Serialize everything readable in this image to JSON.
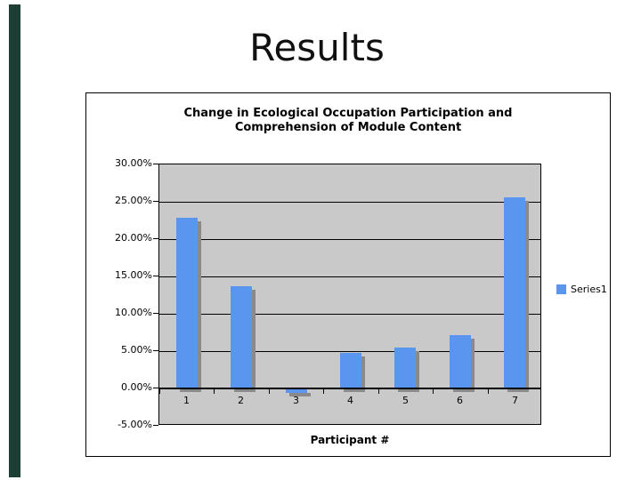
{
  "slide": {
    "title": "Results"
  },
  "chart": {
    "title_line1": "Change in Ecological Occupation Participation and",
    "title_line2": "Comprehension of Module Content",
    "x_axis_title": "Participant #",
    "legend_label": "Series1",
    "colors": {
      "bar_fill": "#5A96F0",
      "bar_shadow": "#8A8A8A",
      "plot_background": "#C9C9C9",
      "accent_bar": "#1D3E35"
    }
  },
  "chart_data": {
    "type": "bar",
    "title": "Change in Ecological Occupation Participation and Comprehension of Module Content",
    "categories": [
      "1",
      "2",
      "3",
      "4",
      "5",
      "6",
      "7"
    ],
    "series": [
      {
        "name": "Series1",
        "values": [
          22.9,
          13.7,
          -0.5,
          4.8,
          5.5,
          7.2,
          25.6
        ]
      }
    ],
    "xlabel": "Participant #",
    "ylabel": "",
    "ylim": [
      -5,
      30
    ],
    "ytick_labels": [
      "30.00%",
      "25.00%",
      "20.00%",
      "15.00%",
      "10.00%",
      "5.00%",
      "0.00%",
      "-5.00%"
    ],
    "grid": true,
    "legend_position": "right"
  }
}
